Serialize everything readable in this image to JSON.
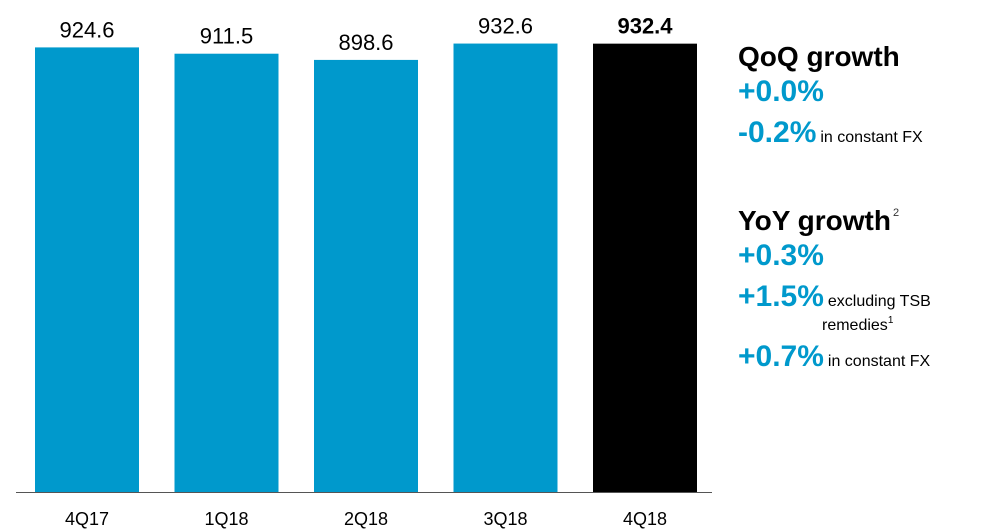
{
  "chart_data": {
    "type": "bar",
    "categories": [
      "4Q17",
      "1Q18",
      "2Q18",
      "3Q18",
      "4Q18"
    ],
    "values": [
      924.6,
      911.5,
      898.6,
      932.6,
      932.4
    ],
    "value_labels": [
      "924.6",
      "911.5",
      "898.6",
      "932.6",
      "932.4"
    ],
    "highlight_index": 4,
    "colors": {
      "bar": "#0099cc",
      "highlight": "#000000",
      "axis": "#555555"
    },
    "ylim": [
      0,
      940
    ],
    "grid": false,
    "title": "",
    "xlabel": "",
    "ylabel": ""
  },
  "growth": {
    "qoq": {
      "title": "QoQ growth",
      "value": "+0.0%",
      "fx_value": "-0.2%",
      "fx_note": "in constant FX"
    },
    "yoy": {
      "title": "YoY growth",
      "footnote": "2",
      "value": "+0.3%",
      "tsb_value": "+1.5%",
      "tsb_note_line1": "excluding TSB",
      "tsb_note_line2": "remedies",
      "tsb_footnote": "1",
      "fx_value": "+0.7%",
      "fx_note": "in constant FX"
    }
  }
}
